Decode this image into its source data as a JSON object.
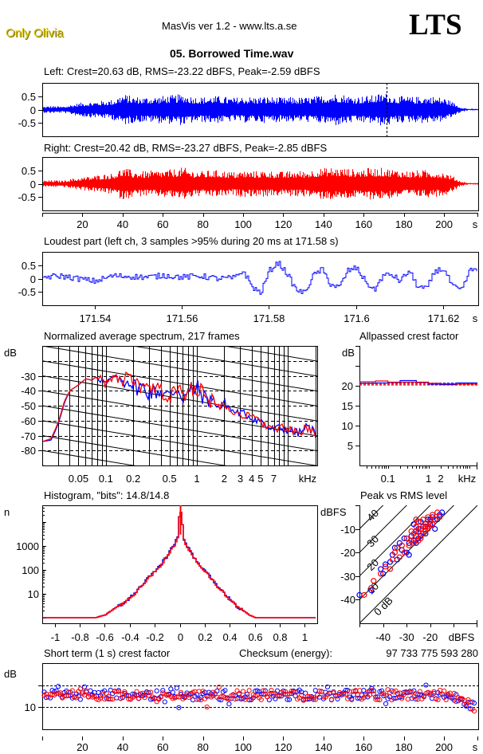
{
  "header": {
    "artist": "Only Olivia",
    "app_title": "MasVis ver 1.2 - www.lts.a.se",
    "logo": "LTS",
    "file_name": "05. Borrowed Time.wav"
  },
  "colors": {
    "left": "#0000ff",
    "right": "#ff0000",
    "grid": "#000000",
    "background": "#ffffff"
  },
  "chart_data": [
    {
      "id": "left_waveform",
      "type": "area",
      "title": "Left: Crest=20.63 dB, RMS=-23.22 dBFS, Peak=-2.59 dBFS",
      "xlabel": "s",
      "ylim": [
        -1,
        1
      ],
      "xlim": [
        0,
        217
      ],
      "yticks": [
        "0.5",
        "0",
        "-0.5"
      ],
      "marker_line_at": 171.58,
      "envelope_t": [
        0,
        5,
        10,
        15,
        20,
        25,
        30,
        35,
        40,
        45,
        50,
        55,
        60,
        65,
        70,
        75,
        80,
        85,
        90,
        95,
        100,
        105,
        110,
        115,
        120,
        125,
        130,
        135,
        140,
        145,
        150,
        155,
        160,
        165,
        170,
        175,
        180,
        185,
        190,
        195,
        200,
        205,
        208,
        212,
        217
      ],
      "envelope": [
        0.12,
        0.14,
        0.12,
        0.2,
        0.28,
        0.3,
        0.34,
        0.38,
        0.6,
        0.5,
        0.48,
        0.5,
        0.52,
        0.55,
        0.6,
        0.5,
        0.48,
        0.52,
        0.5,
        0.45,
        0.5,
        0.48,
        0.5,
        0.48,
        0.45,
        0.48,
        0.46,
        0.5,
        0.55,
        0.62,
        0.58,
        0.5,
        0.52,
        0.55,
        0.65,
        0.52,
        0.5,
        0.48,
        0.52,
        0.5,
        0.45,
        0.25,
        0.1,
        0.03,
        0.03
      ]
    },
    {
      "id": "right_waveform",
      "type": "area",
      "title": "Right: Crest=20.42 dB, RMS=-23.27 dBFS, Peak=-2.85 dBFS",
      "xlabel": "s",
      "ylim": [
        -1,
        1
      ],
      "xlim": [
        0,
        217
      ],
      "yticks": [
        "0.5",
        "0",
        "-0.5"
      ],
      "xticks": [
        "20",
        "40",
        "60",
        "80",
        "100",
        "120",
        "140",
        "160",
        "180",
        "200",
        "s"
      ],
      "envelope_t": [
        0,
        5,
        10,
        15,
        20,
        25,
        30,
        35,
        40,
        45,
        50,
        55,
        60,
        65,
        70,
        75,
        80,
        85,
        90,
        95,
        100,
        105,
        110,
        115,
        120,
        125,
        130,
        135,
        140,
        145,
        150,
        155,
        160,
        165,
        170,
        175,
        180,
        185,
        190,
        195,
        200,
        205,
        208,
        212,
        217
      ],
      "envelope": [
        0.12,
        0.13,
        0.12,
        0.2,
        0.25,
        0.3,
        0.36,
        0.4,
        0.62,
        0.5,
        0.48,
        0.5,
        0.52,
        0.55,
        0.62,
        0.5,
        0.48,
        0.52,
        0.5,
        0.45,
        0.5,
        0.48,
        0.5,
        0.48,
        0.45,
        0.5,
        0.48,
        0.55,
        0.6,
        0.62,
        0.6,
        0.55,
        0.58,
        0.6,
        0.6,
        0.55,
        0.5,
        0.5,
        0.52,
        0.5,
        0.45,
        0.25,
        0.1,
        0.03,
        0.03
      ]
    },
    {
      "id": "loudest_part",
      "type": "line",
      "title": "Loudest part (left  ch, 3 samples >95% during 20 ms at 171.58 s)",
      "xlabel": "s",
      "xlim": [
        171.528,
        171.628
      ],
      "ylim": [
        -1,
        1
      ],
      "yticks": [
        "0.5",
        "0",
        "-0.5"
      ],
      "xticks": [
        "171.54",
        "171.56",
        "171.58",
        "171.6",
        "171.62",
        "s"
      ],
      "x": [
        171.528,
        171.532,
        171.536,
        171.54,
        171.544,
        171.548,
        171.552,
        171.556,
        171.56,
        171.564,
        171.568,
        171.572,
        171.574,
        171.576,
        171.578,
        171.58,
        171.582,
        171.584,
        171.586,
        171.588,
        171.59,
        171.592,
        171.594,
        171.596,
        171.598,
        171.6,
        171.602,
        171.604,
        171.606,
        171.608,
        171.61,
        171.612,
        171.614,
        171.616,
        171.618,
        171.62,
        171.622,
        171.624,
        171.626,
        171.628
      ],
      "y": [
        0.05,
        0.1,
        0.0,
        -0.1,
        0.1,
        0.08,
        0.05,
        0.12,
        0.05,
        0.1,
        0.0,
        0.02,
        0.3,
        -0.3,
        -0.55,
        0.3,
        0.6,
        0.2,
        -0.4,
        -0.55,
        0.1,
        0.35,
        -0.2,
        -0.35,
        0.3,
        0.4,
        -0.1,
        -0.45,
        0.1,
        0.15,
        -0.1,
        0.3,
        -0.3,
        -0.4,
        0.3,
        0.35,
        -0.3,
        -0.45,
        0.3,
        0.4
      ]
    },
    {
      "id": "spectrum",
      "type": "line",
      "title": "Normalized average spectrum, 217 frames",
      "xlabel": "kHz",
      "ylabel": "dB",
      "x_scale": "log",
      "xlim": [
        0.02,
        21
      ],
      "ylim": [
        -90,
        -10
      ],
      "yticks": [
        "-30",
        "-40",
        "-50",
        "-60",
        "-70",
        "-80"
      ],
      "xticks": [
        "0.05",
        "0.1",
        "0.2",
        "0.5",
        "1",
        "2",
        "3",
        "4",
        "5",
        "7",
        "kHz"
      ],
      "x": [
        0.02,
        0.025,
        0.03,
        0.035,
        0.04,
        0.05,
        0.06,
        0.07,
        0.08,
        0.09,
        0.1,
        0.12,
        0.15,
        0.18,
        0.2,
        0.25,
        0.3,
        0.4,
        0.5,
        0.6,
        0.7,
        0.8,
        1.0,
        1.2,
        1.5,
        1.8,
        2.0,
        2.5,
        3.0,
        3.5,
        4.0,
        5.0,
        6.0,
        7.0,
        8.0,
        10.0,
        12.0,
        14.0,
        16.0,
        18.0,
        21.0
      ],
      "series": [
        {
          "name": "Left",
          "values": [
            -74,
            -73,
            -62,
            -48,
            -40,
            -36,
            -32,
            -33,
            -30,
            -33,
            -36,
            -31,
            -34,
            -32,
            -37,
            -38,
            -41,
            -40,
            -44,
            -38,
            -44,
            -42,
            -38,
            -45,
            -46,
            -52,
            -48,
            -54,
            -55,
            -56,
            -58,
            -60,
            -65,
            -66,
            -65,
            -66,
            -68,
            -68,
            -64,
            -66,
            -69
          ]
        },
        {
          "name": "Right",
          "values": [
            -74,
            -72,
            -61,
            -47,
            -40,
            -36,
            -32,
            -33,
            -30,
            -32,
            -36,
            -31,
            -33,
            -32,
            -36,
            -38,
            -40,
            -40,
            -45,
            -39,
            -43,
            -41,
            -37,
            -44,
            -47,
            -51,
            -48,
            -53,
            -56,
            -57,
            -58,
            -60,
            -64,
            -66,
            -65,
            -66,
            -68,
            -69,
            -64,
            -66,
            -70
          ]
        }
      ]
    },
    {
      "id": "allpassed_crest",
      "type": "line",
      "title": "Allpassed crest factor",
      "xlabel": "kHz",
      "ylabel": "dB",
      "x_scale": "log",
      "xlim": [
        0.02,
        16
      ],
      "ylim": [
        0,
        30
      ],
      "yticks": [
        "20",
        "15",
        "10",
        "5"
      ],
      "xticks": [
        "0.1",
        "1",
        "2",
        "kHz"
      ],
      "x": [
        0.02,
        0.05,
        0.1,
        0.2,
        0.5,
        1,
        2,
        5,
        16
      ],
      "series": [
        {
          "name": "Left",
          "values": [
            20.6,
            20.7,
            20.8,
            21.3,
            20.9,
            20.4,
            20.3,
            20.7,
            20.7
          ]
        },
        {
          "name": "Right",
          "values": [
            21.0,
            21.2,
            20.9,
            20.9,
            20.8,
            20.6,
            20.5,
            20.4,
            20.4
          ]
        }
      ],
      "reference_lines": [
        {
          "name": "Left overall",
          "value": 20.63
        },
        {
          "name": "Right overall",
          "value": 20.42
        }
      ]
    },
    {
      "id": "histogram",
      "type": "line",
      "title": "Histogram, \"bits\": 14.8/14.8",
      "ylabel": "n",
      "y_scale": "log",
      "xlim": [
        -1.1,
        1.1
      ],
      "ylim": [
        0.8,
        30000
      ],
      "yticks": [
        "1000",
        "100",
        "10"
      ],
      "xticks": [
        "-1",
        "-0.8",
        "-0.6",
        "-0.4",
        "-0.2",
        "0",
        "0.2",
        "0.4",
        "0.6",
        "0.8",
        "1"
      ],
      "x": [
        -1.1,
        -0.68,
        -0.6,
        -0.55,
        -0.5,
        -0.45,
        -0.4,
        -0.35,
        -0.3,
        -0.25,
        -0.2,
        -0.15,
        -0.1,
        -0.05,
        -0.02,
        0,
        0.02,
        0.05,
        0.1,
        0.15,
        0.2,
        0.25,
        0.3,
        0.35,
        0.4,
        0.45,
        0.5,
        0.55,
        0.6,
        0.65,
        0.72,
        0.75,
        1.1
      ],
      "series": [
        {
          "name": "Left",
          "values": [
            1,
            1,
            1.3,
            2,
            3,
            4,
            7,
            12,
            25,
            50,
            90,
            180,
            400,
            1100,
            2200,
            30000,
            2200,
            1000,
            350,
            160,
            80,
            40,
            20,
            10,
            6,
            3,
            2,
            1.3,
            1,
            1,
            1,
            1,
            1
          ]
        },
        {
          "name": "Right",
          "values": [
            1,
            1,
            1.3,
            2,
            3,
            4,
            7,
            12,
            24,
            48,
            85,
            170,
            380,
            1050,
            2100,
            30000,
            2100,
            950,
            340,
            150,
            78,
            38,
            19,
            10,
            5,
            3,
            2,
            1.3,
            1,
            1,
            1,
            1,
            1
          ]
        }
      ]
    },
    {
      "id": "peak_vs_rms",
      "type": "scatter",
      "title": "Peak vs RMS level",
      "xlabel": "dBFS",
      "ylabel": "dBFS",
      "xlim": [
        -50,
        0
      ],
      "ylim": [
        -50,
        0
      ],
      "yticks": [
        "-10",
        "-20",
        "-30",
        "-40"
      ],
      "xticks": [
        "-40",
        "-30",
        "-20",
        "dBFS"
      ],
      "diagonal_labels": [
        "40",
        "30",
        "20",
        "10",
        "0 dB"
      ],
      "series": [
        {
          "name": "Left",
          "points": [
            [
              -50,
              -38
            ],
            [
              -45,
              -36
            ],
            [
              -41,
              -27
            ],
            [
              -40,
              -29
            ],
            [
              -39,
              -25
            ],
            [
              -37,
              -24
            ],
            [
              -36,
              -21
            ],
            [
              -35,
              -18
            ],
            [
              -34,
              -23
            ],
            [
              -33,
              -16
            ],
            [
              -32,
              -19
            ],
            [
              -31,
              -14
            ],
            [
              -30,
              -20
            ],
            [
              -29,
              -16
            ],
            [
              -28,
              -13
            ],
            [
              -27,
              -15
            ],
            [
              -27,
              -8
            ],
            [
              -26,
              -11
            ],
            [
              -25,
              -10
            ],
            [
              -25,
              -14
            ],
            [
              -24,
              -7
            ],
            [
              -23,
              -9
            ],
            [
              -22,
              -12
            ],
            [
              -21,
              -6
            ],
            [
              -20,
              -8
            ],
            [
              -19,
              -5
            ],
            [
              -18,
              -10
            ],
            [
              -17,
              -6
            ],
            [
              -16,
              -4
            ],
            [
              -15,
              -3
            ],
            [
              -29,
              -21
            ],
            [
              -26,
              -16
            ],
            [
              -24,
              -13
            ],
            [
              -22,
              -9
            ],
            [
              -20,
              -6
            ]
          ]
        },
        {
          "name": "Right",
          "points": [
            [
              -48,
              -38
            ],
            [
              -45,
              -35
            ],
            [
              -44,
              -32
            ],
            [
              -41,
              -29
            ],
            [
              -39,
              -26
            ],
            [
              -37,
              -27
            ],
            [
              -36,
              -23
            ],
            [
              -35,
              -20
            ],
            [
              -34,
              -18
            ],
            [
              -33,
              -22
            ],
            [
              -32,
              -17
            ],
            [
              -31,
              -20
            ],
            [
              -30,
              -14
            ],
            [
              -29,
              -17
            ],
            [
              -28,
              -15
            ],
            [
              -27,
              -12
            ],
            [
              -27,
              -16
            ],
            [
              -26,
              -9
            ],
            [
              -26,
              -13
            ],
            [
              -25,
              -11
            ],
            [
              -25,
              -7
            ],
            [
              -24,
              -10
            ],
            [
              -24,
              -14
            ],
            [
              -23,
              -6
            ],
            [
              -23,
              -9
            ],
            [
              -22,
              -8
            ],
            [
              -22,
              -11
            ],
            [
              -21,
              -5
            ],
            [
              -21,
              -9
            ],
            [
              -20,
              -7
            ],
            [
              -19,
              -4
            ],
            [
              -19,
              -8
            ],
            [
              -18,
              -6
            ],
            [
              -17,
              -3
            ],
            [
              -16,
              -5
            ],
            [
              -25,
              -15
            ],
            [
              -23,
              -12
            ],
            [
              -21,
              -10
            ],
            [
              -28,
              -11
            ],
            [
              -26,
              -6
            ]
          ]
        }
      ]
    },
    {
      "id": "short_term_crest",
      "type": "scatter",
      "title": "Short term (1 s) crest factor",
      "checksum_label": "Checksum (energy):",
      "checksum_value": "97 733 775 593 280",
      "xlabel": "s",
      "ylabel": "dB",
      "xlim": [
        0,
        217
      ],
      "ylim": [
        0,
        30
      ],
      "yticks": [
        "10"
      ],
      "reference_lines": [
        10,
        20
      ],
      "xticks": [
        "20",
        "40",
        "60",
        "80",
        "100",
        "120",
        "140",
        "160",
        "180",
        "200",
        "s"
      ],
      "series": [
        {
          "name": "Left",
          "mean": 15.5,
          "spread": 2.2
        },
        {
          "name": "Right",
          "mean": 15.5,
          "spread": 2.2
        }
      ],
      "fade_out_start": 203,
      "fade_out_min": 8.5
    }
  ]
}
